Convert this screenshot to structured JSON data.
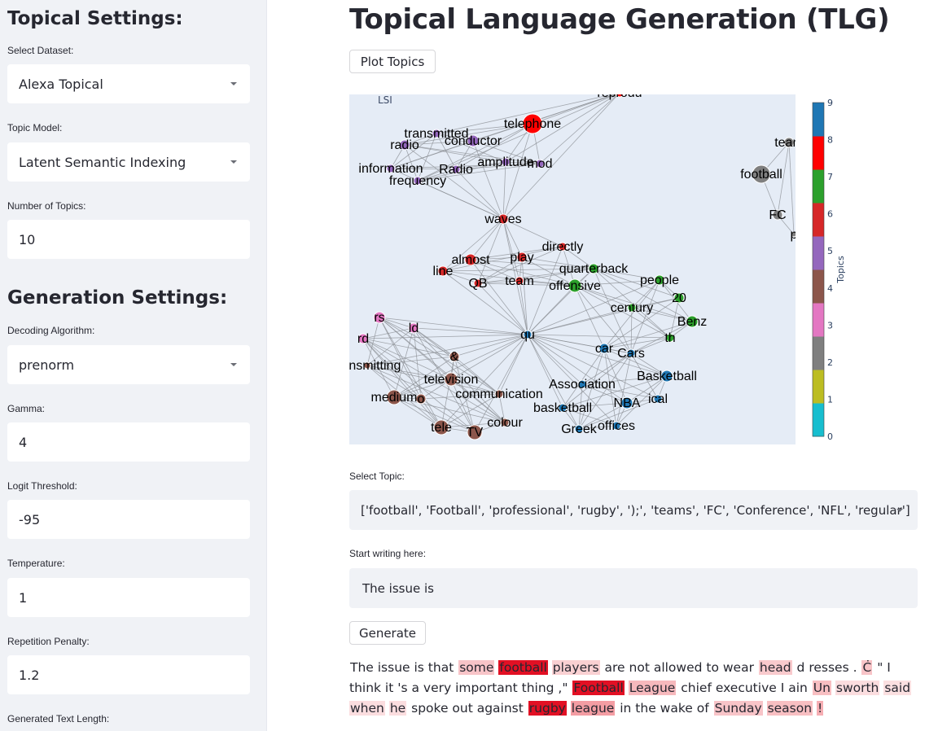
{
  "sidebar": {
    "topical_heading": "Topical Settings:",
    "generation_heading": "Generation Settings:",
    "fields": {
      "dataset": {
        "label": "Select Dataset:",
        "value": "Alexa Topical"
      },
      "topic_model": {
        "label": "Topic Model:",
        "value": "Latent Semantic Indexing"
      },
      "num_topics": {
        "label": "Number of Topics:",
        "value": "10"
      },
      "decoding": {
        "label": "Decoding Algorithm:",
        "value": "prenorm"
      },
      "gamma": {
        "label": "Gamma:",
        "value": "4"
      },
      "logit_threshold": {
        "label": "Logit Threshold:",
        "value": "-95"
      },
      "temperature": {
        "label": "Temperature:",
        "value": "1"
      },
      "repetition_penalty": {
        "label": "Repetition Penalty:",
        "value": "1.2"
      },
      "length": {
        "label": "Generated Text Length:"
      }
    }
  },
  "main": {
    "title": "Topical Language Generation (TLG)",
    "plot_button": "Plot Topics",
    "plot": {
      "title_tag": "LSI",
      "colorbar_title": "Topics",
      "colorbar_ticks": [
        "0",
        "1",
        "2",
        "3",
        "4",
        "5",
        "6",
        "7",
        "8",
        "9"
      ],
      "colors": [
        "#17becf",
        "#bcbd22",
        "#7f7f7f",
        "#e377c2",
        "#8c564b",
        "#9467bd",
        "#d62728",
        "#2ca02c",
        "#ff0000",
        "#1f77b4"
      ],
      "background": "#e5ecf6",
      "nodes": [
        {
          "label": "reprodu",
          "topic": 8
        },
        {
          "label": "telephone",
          "topic": 8
        },
        {
          "label": "transmitted",
          "topic": 5
        },
        {
          "label": "conductor",
          "topic": 5
        },
        {
          "label": "radio",
          "topic": 5
        },
        {
          "label": "amplitude",
          "topic": 5
        },
        {
          "label": "mod",
          "topic": 5
        },
        {
          "label": "information",
          "topic": 5
        },
        {
          "label": "Radio",
          "topic": 5
        },
        {
          "label": "frequency",
          "topic": 5
        },
        {
          "label": "waves",
          "topic": 6
        },
        {
          "label": "directly",
          "topic": 6
        },
        {
          "label": "almost",
          "topic": 6
        },
        {
          "label": "play",
          "topic": 6
        },
        {
          "label": "quarterback",
          "topic": 7
        },
        {
          "label": "line",
          "topic": 6
        },
        {
          "label": "QB",
          "topic": 6
        },
        {
          "label": "team",
          "topic": 6
        },
        {
          "label": "offensive",
          "topic": 7
        },
        {
          "label": "people",
          "topic": 7
        },
        {
          "label": "20",
          "topic": 7
        },
        {
          "label": "century",
          "topic": 7
        },
        {
          "label": "Benz",
          "topic": 7
        },
        {
          "label": "th",
          "topic": 7
        },
        {
          "label": "qu",
          "topic": 9
        },
        {
          "label": "rs",
          "topic": 3
        },
        {
          "label": "ld",
          "topic": 3
        },
        {
          "label": "rd",
          "topic": 3
        },
        {
          "label": "&",
          "topic": 4
        },
        {
          "label": "transmitting",
          "topic": 4
        },
        {
          "label": "television",
          "topic": 4
        },
        {
          "label": "medium",
          "topic": 4
        },
        {
          "label": "o",
          "topic": 4
        },
        {
          "label": "communication",
          "topic": 4
        },
        {
          "label": "tele",
          "topic": 4
        },
        {
          "label": "TV",
          "topic": 4
        },
        {
          "label": "colour",
          "topic": 4
        },
        {
          "label": "car",
          "topic": 9
        },
        {
          "label": "Cars",
          "topic": 9
        },
        {
          "label": "Association",
          "topic": 9
        },
        {
          "label": "Basketball",
          "topic": 9
        },
        {
          "label": "basketball",
          "topic": 9
        },
        {
          "label": "NBA",
          "topic": 9
        },
        {
          "label": "ical",
          "topic": 9
        },
        {
          "label": "Greek",
          "topic": 9
        },
        {
          "label": "offices",
          "topic": 9
        },
        {
          "label": "team",
          "topic": 2
        },
        {
          "label": "football",
          "topic": 2
        },
        {
          "label": "FC",
          "topic": 2
        },
        {
          "label": "p",
          "topic": 2
        }
      ]
    },
    "select_topic": {
      "label": "Select Topic:",
      "value": "['football', 'Football', 'professional', 'rugby', ');', 'teams', 'FC', 'Conference', 'NFL', 'regular']"
    },
    "start_writing": {
      "label": "Start writing here:",
      "value": "The issue is"
    },
    "generate_button": "Generate",
    "generated_tokens": [
      {
        "t": "The issue is that",
        "w": 0
      },
      {
        "t": "some",
        "w": 0.3
      },
      {
        "t": "football",
        "w": 1
      },
      {
        "t": "players",
        "w": 0.2
      },
      {
        "t": "are not allowed to wear",
        "w": 0
      },
      {
        "t": "head",
        "w": 0.25
      },
      {
        "t": "d resses .",
        "w": 0
      },
      {
        "t": "Ċ",
        "w": 0.3
      },
      {
        "t": "\" I think it 's a very important thing ,\"",
        "w": 0
      },
      {
        "t": "Football",
        "w": 1
      },
      {
        "t": "League",
        "w": 0.4
      },
      {
        "t": "chief executive I ain",
        "w": 0
      },
      {
        "t": "Un",
        "w": 0.35
      },
      {
        "t": "sworth",
        "w": 0.08
      },
      {
        "t": "said",
        "w": 0.06
      },
      {
        "t": "when",
        "w": 0.08
      },
      {
        "t": "he",
        "w": 0.08
      },
      {
        "t": "spoke out against",
        "w": 0
      },
      {
        "t": "rugby",
        "w": 1
      },
      {
        "t": "league",
        "w": 0.65
      },
      {
        "t": "in the wake of",
        "w": 0
      },
      {
        "t": "Sunday",
        "w": 0.3
      },
      {
        "t": "season",
        "w": 0.35
      },
      {
        "t": "!",
        "w": 0.5
      }
    ]
  }
}
